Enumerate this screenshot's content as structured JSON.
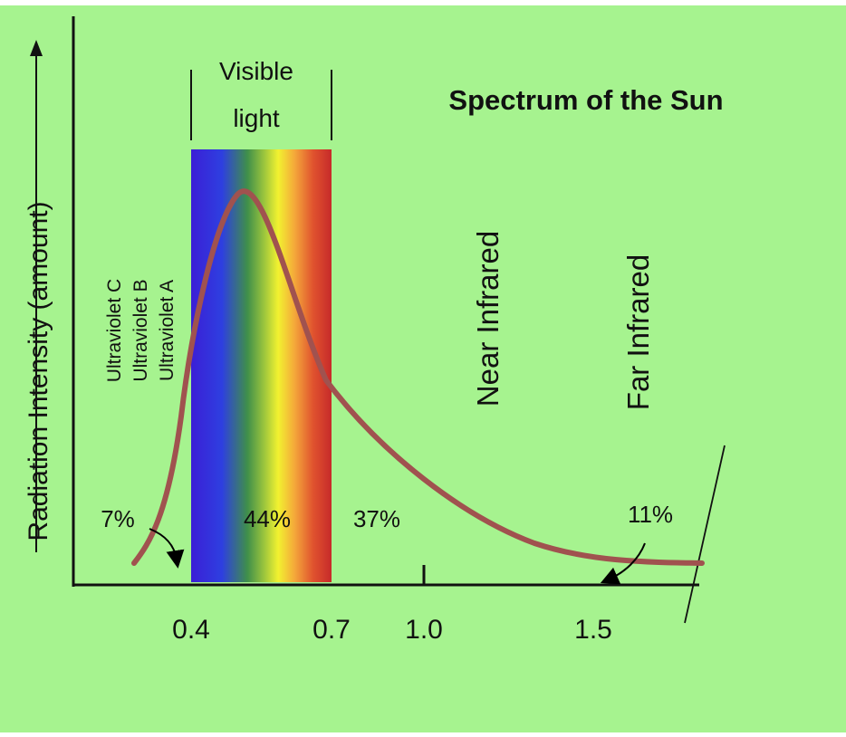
{
  "title": "Spectrum of the Sun",
  "background_color": "#a6f38f",
  "curve_color": "#a0524f",
  "y_axis_label": "Radiation Intensity (amount)",
  "x_ticks": [
    "0.4",
    "0.7",
    "1.0",
    "1.5"
  ],
  "visible_label": [
    "Visible",
    "light"
  ],
  "uv_labels": [
    "Ultraviolet C",
    "Ultraviolet B",
    "Ultraviolet A"
  ],
  "region_labels": {
    "near": "Near Infrared",
    "far": "Far Infrared"
  },
  "percentages": {
    "uv": "7%",
    "visible": "44%",
    "near_ir": "37%",
    "far_ir": "11%"
  },
  "spectrum_colors": [
    "#3b1fd6",
    "#2e3fe0",
    "#3f8f4a",
    "#9bc53d",
    "#f2f230",
    "#f4a63a",
    "#e0522e",
    "#c62a2a"
  ]
}
